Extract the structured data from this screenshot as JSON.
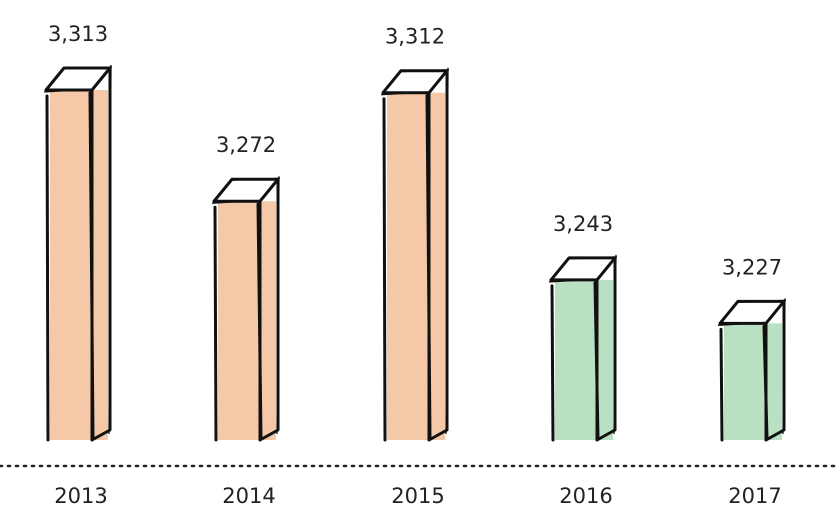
{
  "chart_data": {
    "type": "bar",
    "categories": [
      "2013",
      "2014",
      "2015",
      "2016",
      "2017"
    ],
    "values": [
      3313,
      3272,
      3312,
      3243,
      3227
    ],
    "value_labels": [
      "3,313",
      "3,272",
      "3,312",
      "3,243",
      "3,227"
    ],
    "colors": [
      "#f5c9a8",
      "#f5c9a8",
      "#f5c9a8",
      "#b9e0c3",
      "#b9e0c3"
    ]
  }
}
